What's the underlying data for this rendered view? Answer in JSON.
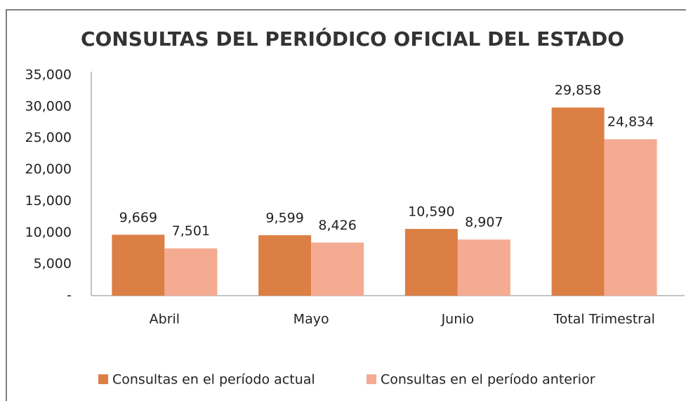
{
  "chart_data": {
    "type": "bar",
    "title": "CONSULTAS DEL PERIÓDICO OFICIAL DEL ESTADO",
    "categories": [
      "Abril",
      "Mayo",
      "Junio",
      "Total Trimestral"
    ],
    "series": [
      {
        "name": "Consultas en el período actual",
        "color": "#dc7f45",
        "values": [
          9669,
          9599,
          10590,
          29858
        ],
        "value_labels": [
          "9,669",
          "9,599",
          "10,590",
          "29,858"
        ]
      },
      {
        "name": "Consultas en el período anterior",
        "color": "#f5aa92",
        "values": [
          7501,
          8426,
          8907,
          24834
        ],
        "value_labels": [
          "7,501",
          "8,426",
          "8,907",
          "24,834"
        ]
      }
    ],
    "ylim": [
      0,
      35000
    ],
    "yticks": [
      {
        "value": 0,
        "label": "-"
      },
      {
        "value": 5000,
        "label": "5,000"
      },
      {
        "value": 10000,
        "label": "10,000"
      },
      {
        "value": 15000,
        "label": "15,000"
      },
      {
        "value": 20000,
        "label": "20,000"
      },
      {
        "value": 25000,
        "label": "25,000"
      },
      {
        "value": 30000,
        "label": "30,000"
      },
      {
        "value": 35000,
        "label": "35,000"
      }
    ],
    "grid": false,
    "legend": "bottom"
  }
}
